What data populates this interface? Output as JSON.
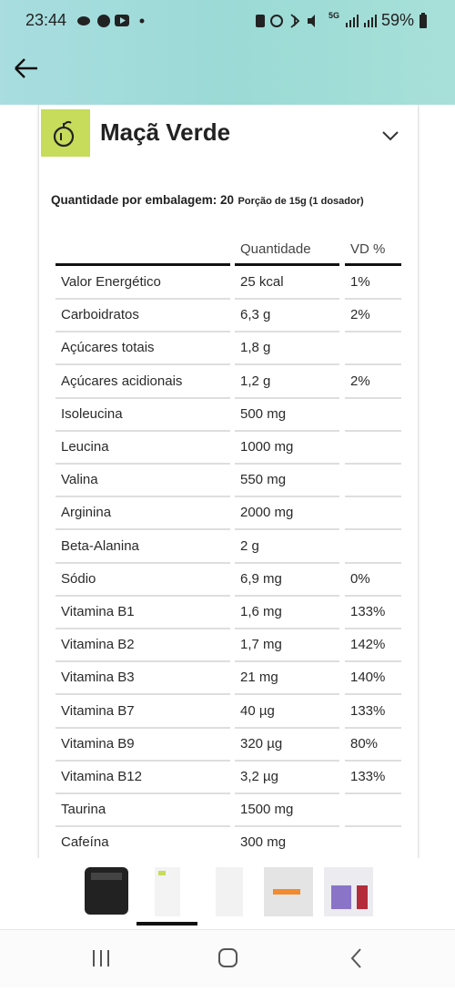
{
  "status_bar": {
    "time": "23:44",
    "network": "5G",
    "battery": "59%"
  },
  "product": {
    "title": "Maçã Verde"
  },
  "serving": {
    "label": "Quantidade por embalagem: 20",
    "detail": "Porção de 15g (1 dosador)"
  },
  "table": {
    "header": [
      "Quantidade",
      "VD %"
    ],
    "rows": [
      [
        "Valor Energético",
        "25 kcal",
        "1%"
      ],
      [
        "Carboidratos",
        "6,3 g",
        "2%"
      ],
      [
        "Açúcares totais",
        "1,8 g"
      ],
      [
        "Açúcares acidionais",
        "1,2 g",
        "2%"
      ],
      [
        "Isoleucina",
        "500 mg"
      ],
      [
        "Leucina",
        "1000 mg"
      ],
      [
        "Valina",
        "550 mg"
      ],
      [
        "Arginina",
        "2000 mg"
      ],
      [
        "Beta-Alanina",
        "2 g"
      ],
      [
        "Sódio",
        "6,9 mg",
        "0%"
      ],
      [
        "Vitamina B1",
        "1,6 mg",
        "133%"
      ],
      [
        "Vitamina B2",
        "1,7 mg",
        "142%"
      ],
      [
        "Vitamina B3",
        "21 mg",
        "140%"
      ],
      [
        "Vitamina B7",
        "40 µg",
        "133%"
      ],
      [
        "Vitamina B9",
        "320 µg",
        "80%"
      ],
      [
        "Vitamina B12",
        "3,2 µg",
        "133%"
      ],
      [
        "Taurina",
        "1500 mg"
      ],
      [
        "Cafeína",
        "300 mg"
      ]
    ]
  }
}
